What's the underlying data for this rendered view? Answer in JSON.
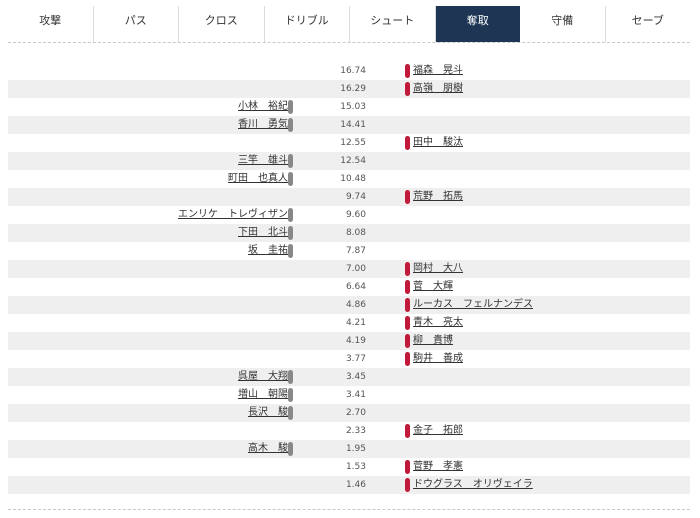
{
  "tabs": [
    {
      "label": "攻撃",
      "active": false
    },
    {
      "label": "パス",
      "active": false
    },
    {
      "label": "クロス",
      "active": false
    },
    {
      "label": "ドリブル",
      "active": false
    },
    {
      "label": "シュート",
      "active": false
    },
    {
      "label": "奪取",
      "active": true
    },
    {
      "label": "守備",
      "active": false
    },
    {
      "label": "セーブ",
      "active": false
    }
  ],
  "colors": {
    "active_tab": "#1e3653",
    "left_bar": "#888888",
    "right_bar": "#c0193a",
    "alt_row": "#efefef"
  },
  "rows": [
    {
      "value": "16.74",
      "side": "right",
      "name": "福森　晃斗"
    },
    {
      "value": "16.29",
      "side": "right",
      "name": "高嶺　朋樹"
    },
    {
      "value": "15.03",
      "side": "left",
      "name": "小林　裕紀"
    },
    {
      "value": "14.41",
      "side": "left",
      "name": "香川　勇気"
    },
    {
      "value": "12.55",
      "side": "right",
      "name": "田中　駿汰"
    },
    {
      "value": "12.54",
      "side": "left",
      "name": "三竿　雄斗"
    },
    {
      "value": "10.48",
      "side": "left",
      "name": "町田　也真人"
    },
    {
      "value": "9.74",
      "side": "right",
      "name": "荒野　拓馬"
    },
    {
      "value": "9.60",
      "side": "left",
      "name": "エンリケ　トレヴィザン"
    },
    {
      "value": "8.08",
      "side": "left",
      "name": "下田　北斗"
    },
    {
      "value": "7.87",
      "side": "left",
      "name": "坂　圭祐"
    },
    {
      "value": "7.00",
      "side": "right",
      "name": "岡村　大八"
    },
    {
      "value": "6.64",
      "side": "right",
      "name": "菅　大輝"
    },
    {
      "value": "4.86",
      "side": "right",
      "name": "ルーカス　フェルナンデス"
    },
    {
      "value": "4.21",
      "side": "right",
      "name": "青木　亮太"
    },
    {
      "value": "4.19",
      "side": "right",
      "name": "柳　貴博"
    },
    {
      "value": "3.77",
      "side": "right",
      "name": "駒井　善成"
    },
    {
      "value": "3.45",
      "side": "left",
      "name": "呉屋　大翔"
    },
    {
      "value": "3.41",
      "side": "left",
      "name": "増山　朝陽"
    },
    {
      "value": "2.70",
      "side": "left",
      "name": "長沢　駿"
    },
    {
      "value": "2.33",
      "side": "right",
      "name": "金子　拓郎"
    },
    {
      "value": "1.95",
      "side": "left",
      "name": "高木　駿"
    },
    {
      "value": "1.53",
      "side": "right",
      "name": "菅野　孝憲"
    },
    {
      "value": "1.46",
      "side": "right",
      "name": "ドウグラス　オリヴェイラ"
    }
  ]
}
